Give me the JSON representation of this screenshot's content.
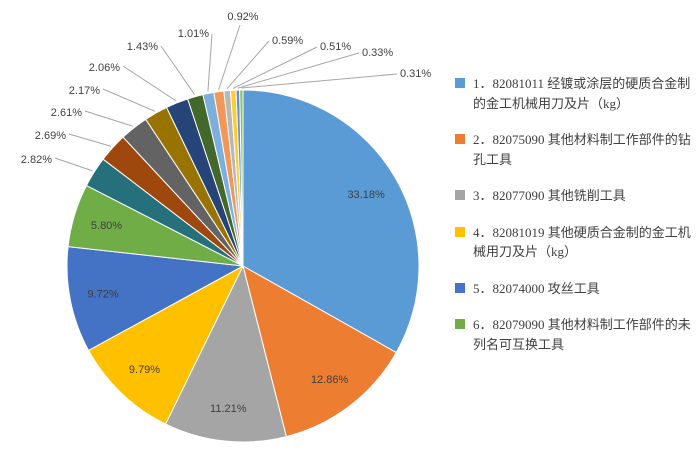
{
  "chart_data": {
    "type": "pie",
    "title": "",
    "unit": "%",
    "legend_position": "right",
    "slices": [
      {
        "label": "33.18%",
        "value": 33.18
      },
      {
        "label": "12.86%",
        "value": 12.86
      },
      {
        "label": "11.21%",
        "value": 11.21
      },
      {
        "label": "9.79%",
        "value": 9.79
      },
      {
        "label": "9.72%",
        "value": 9.72
      },
      {
        "label": "5.80%",
        "value": 5.8
      },
      {
        "label": "2.82%",
        "value": 2.82
      },
      {
        "label": "2.69%",
        "value": 2.69
      },
      {
        "label": "2.61%",
        "value": 2.61
      },
      {
        "label": "2.17%",
        "value": 2.17
      },
      {
        "label": "2.06%",
        "value": 2.06
      },
      {
        "label": "1.43%",
        "value": 1.43
      },
      {
        "label": "1.01%",
        "value": 1.01
      },
      {
        "label": "0.92%",
        "value": 0.92
      },
      {
        "label": "0.59%",
        "value": 0.59
      },
      {
        "label": "0.51%",
        "value": 0.51
      },
      {
        "label": "0.33%",
        "value": 0.33
      },
      {
        "label": "0.31%",
        "value": 0.31
      }
    ],
    "colors": [
      "#5B9BD5",
      "#ED7D31",
      "#A5A5A5",
      "#FFC000",
      "#4472C4",
      "#70AD47",
      "#26707B",
      "#9E480E",
      "#636363",
      "#997300",
      "#264478",
      "#43682B",
      "#7CAFDD",
      "#F1975A",
      "#B7B7B7",
      "#FFCD33",
      "#698ED0",
      "#8CC168"
    ],
    "leader_line_color": "#a6a6a6",
    "legend": [
      {
        "label": "1．82081011 经镀或涂层的硬质合金制的金工机械用刀及片（kg）",
        "color": "#5B9BD5"
      },
      {
        "label": "2．82075090 其他材料制工作部件的钻孔工具",
        "color": "#ED7D31"
      },
      {
        "label": "3．82077090 其他铣削工具",
        "color": "#A5A5A5"
      },
      {
        "label": "4．82081019 其他硬质合金制的金工机械用刀及片（kg）",
        "color": "#FFC000"
      },
      {
        "label": "5．82074000 攻丝工具",
        "color": "#4472C4"
      },
      {
        "label": "6．82079090 其他材料制工作部件的未列名可互换工具",
        "color": "#70AD47"
      }
    ]
  }
}
